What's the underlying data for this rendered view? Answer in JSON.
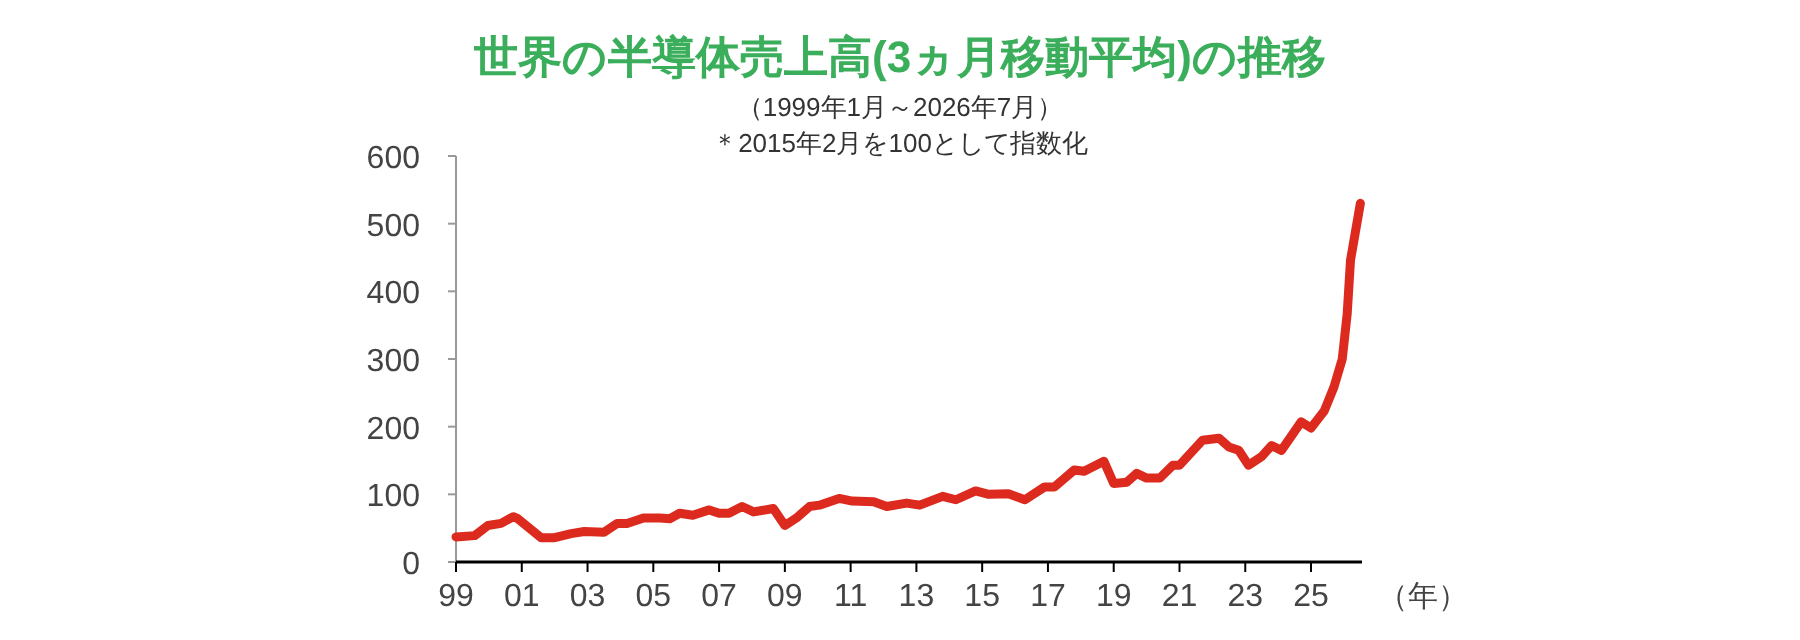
{
  "chart_data": {
    "type": "line",
    "title": "世界の半導体売上高(3ヵ月移動平均)の推移",
    "subtitle": "（1999年1月～2026年7月）",
    "annotations": [
      "＊2015年2月を100として指数化"
    ],
    "xlabel": "（年）",
    "x": [
      1999.0,
      1999.57,
      1999.97,
      2000.37,
      2000.74,
      2000.88,
      2001.59,
      2002.0,
      2002.5,
      2002.9,
      2003.5,
      2003.9,
      2004.2,
      2004.7,
      2005.2,
      2005.5,
      2005.8,
      2006.2,
      2006.7,
      2007.0,
      2007.3,
      2007.7,
      2008.05,
      2008.65,
      2009.0,
      2009.35,
      2009.75,
      2010.05,
      2010.65,
      2011.05,
      2011.7,
      2012.1,
      2012.7,
      2013.1,
      2013.8,
      2014.2,
      2014.8,
      2015.2,
      2015.8,
      2016.3,
      2016.9,
      2017.2,
      2017.8,
      2018.1,
      2018.7,
      2019.0,
      2019.4,
      2019.7,
      2020.0,
      2020.4,
      2020.8,
      2021.0,
      2021.7,
      2022.2,
      2022.5,
      2022.8,
      2023.1,
      2023.5,
      2023.8,
      2024.1,
      2024.7,
      2025.0,
      2025.4,
      2025.7,
      2025.95,
      2026.1,
      2026.2,
      2026.5
    ],
    "series": [
      {
        "color": "#dc2a1e",
        "values": [
          37,
          39,
          54,
          57,
          67,
          64,
          36,
          36,
          42,
          45,
          44,
          57,
          57,
          65,
          65,
          64,
          72,
          69,
          77,
          72,
          72,
          82,
          74,
          79,
          54,
          65,
          82,
          84,
          94,
          90,
          89,
          82,
          87,
          84,
          97,
          92,
          105,
          100,
          101,
          92,
          111,
          111,
          136,
          134,
          149,
          116,
          118,
          131,
          124,
          124,
          143,
          143,
          180,
          183,
          170,
          165,
          143,
          156,
          172,
          165,
          207,
          198,
          223,
          259,
          300,
          367,
          446,
          530
        ]
      }
    ],
    "xlim": [
      1999,
      2026.55
    ],
    "ylim": [
      0,
      600
    ],
    "yticks": [
      0,
      100,
      200,
      300,
      400,
      500,
      600
    ],
    "xticks": [
      {
        "value": 1999,
        "label": "99"
      },
      {
        "value": 2001,
        "label": "01"
      },
      {
        "value": 2003,
        "label": "03"
      },
      {
        "value": 2005,
        "label": "05"
      },
      {
        "value": 2007,
        "label": "07"
      },
      {
        "value": 2009,
        "label": "09"
      },
      {
        "value": 2011,
        "label": "11"
      },
      {
        "value": 2013,
        "label": "13"
      },
      {
        "value": 2015,
        "label": "15"
      },
      {
        "value": 2017,
        "label": "17"
      },
      {
        "value": 2019,
        "label": "19"
      },
      {
        "value": 2021,
        "label": "21"
      },
      {
        "value": 2023,
        "label": "23"
      },
      {
        "value": 2025,
        "label": "25"
      }
    ],
    "grid": false,
    "marker": "none",
    "line_style": "solid"
  }
}
